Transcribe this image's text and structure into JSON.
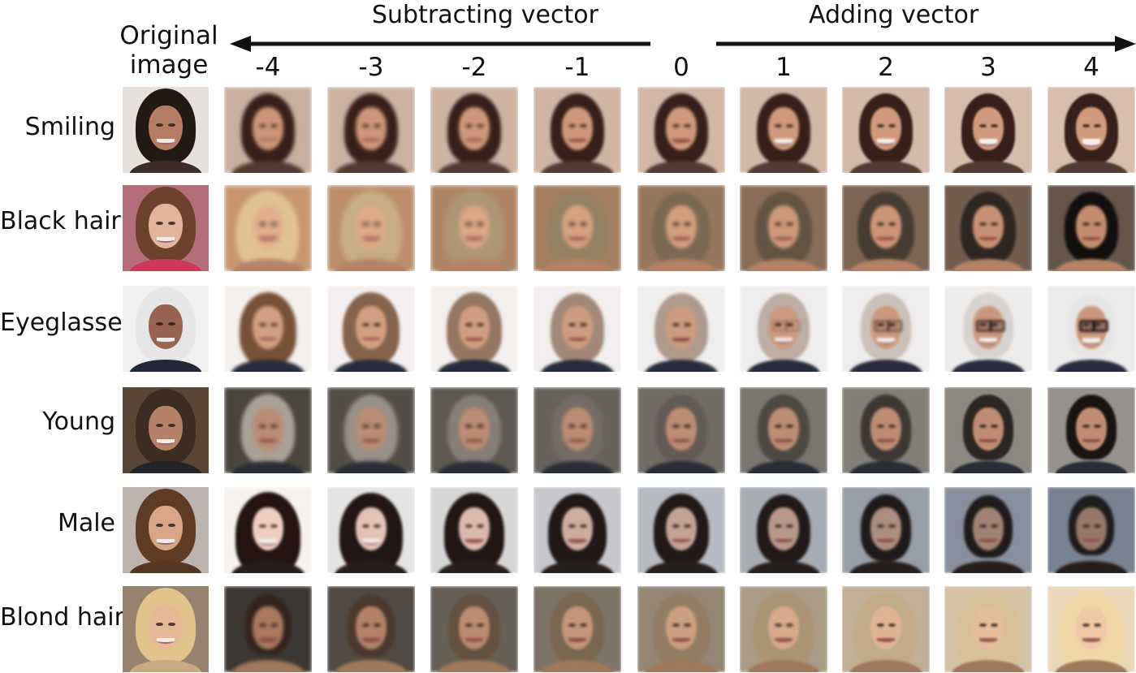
{
  "header": {
    "original_label_line1": "Original",
    "original_label_line2": "image",
    "subtracting_label": "Subtracting vector",
    "adding_label": "Adding vector"
  },
  "columns": [
    "-4",
    "-3",
    "-2",
    "-1",
    "0",
    "1",
    "2",
    "3",
    "4"
  ],
  "rows": [
    {
      "label": "Smiling"
    },
    {
      "label": "Black hair"
    },
    {
      "label": "Eyeglasses"
    },
    {
      "label": "Young"
    },
    {
      "label": "Male"
    },
    {
      "label": "Blond hair"
    }
  ]
}
